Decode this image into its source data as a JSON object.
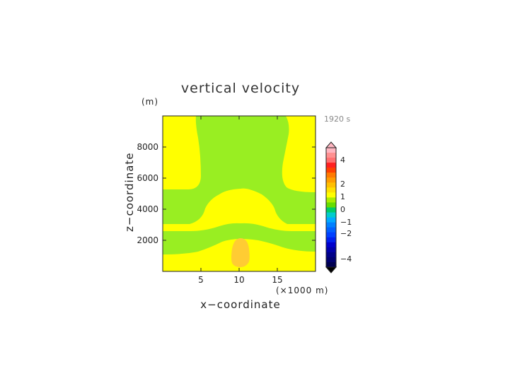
{
  "chart_data": {
    "type": "heatmap",
    "title": "vertical velocity",
    "xlabel": "x−coordinate",
    "ylabel": "z−coordinate",
    "x_unit": "(×1000 m)",
    "y_unit": "(m)",
    "time_label": "1920 s",
    "x_ticks": [
      "5",
      "10",
      "15"
    ],
    "y_ticks": [
      "2000",
      "4000",
      "6000",
      "8000"
    ],
    "x_tick_values": [
      5,
      10,
      15
    ],
    "y_tick_values": [
      2000,
      4000,
      6000,
      8000
    ],
    "xlim": [
      0,
      20
    ],
    "ylim": [
      0,
      10000
    ],
    "colorbar_labels": [
      "4",
      "2",
      "1",
      "0",
      "−1",
      "−2",
      "−4"
    ],
    "colors": {
      "yellow": "#ffff00",
      "green": "#99ee22",
      "orange": "#ffcc33",
      "colorbar": [
        "#ffb6c1",
        "#ff9090",
        "#ff7070",
        "#ff2020",
        "#ff4000",
        "#ff7a00",
        "#ff9c00",
        "#ffbf00",
        "#ffe000",
        "#ffff00",
        "#aaee00",
        "#66dd00",
        "#00cc66",
        "#00cccc",
        "#00aaff",
        "#0080ff",
        "#0060ff",
        "#0040ff",
        "#0020ee",
        "#0000cc",
        "#0000aa",
        "#000088",
        "#000070",
        "#000050"
      ]
    }
  }
}
